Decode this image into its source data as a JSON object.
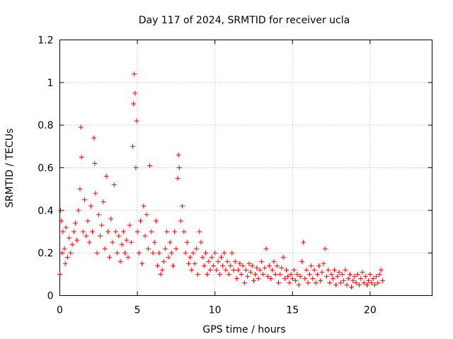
{
  "chart_data": {
    "type": "scatter",
    "title": "Day 117 of 2024, SRMTID for receiver ucla",
    "xlabel": "GPS time / hours",
    "ylabel": "SRMTID / TECUs",
    "xlim": [
      0,
      24
    ],
    "ylim": [
      0,
      1.2
    ],
    "xticks": [
      0,
      5,
      10,
      15,
      20
    ],
    "yticks": [
      0,
      0.2,
      0.4,
      0.6,
      0.8,
      1,
      1.2
    ],
    "xtick_labels": [
      "0",
      "5",
      "10",
      "15",
      "20"
    ],
    "ytick_labels": [
      "0",
      "0.2",
      "0.4",
      "0.6",
      "0.8",
      "1",
      "1.2"
    ],
    "grid": true,
    "marker": "+",
    "marker_color": "#ff0000",
    "series": [
      {
        "name": "SRMTID",
        "points": [
          [
            0.0,
            0.1
          ],
          [
            0.05,
            0.4
          ],
          [
            0.1,
            0.35
          ],
          [
            0.15,
            0.2
          ],
          [
            0.2,
            0.3
          ],
          [
            0.3,
            0.22
          ],
          [
            0.35,
            0.15
          ],
          [
            0.4,
            0.32
          ],
          [
            0.5,
            0.18
          ],
          [
            0.6,
            0.27
          ],
          [
            0.7,
            0.2
          ],
          [
            0.8,
            0.24
          ],
          [
            0.9,
            0.3
          ],
          [
            1.0,
            0.34
          ],
          [
            1.1,
            0.26
          ],
          [
            1.2,
            0.4
          ],
          [
            1.3,
            0.5
          ],
          [
            1.35,
            0.79
          ],
          [
            1.4,
            0.65
          ],
          [
            1.5,
            0.3
          ],
          [
            1.6,
            0.45
          ],
          [
            1.7,
            0.28
          ],
          [
            1.8,
            0.35
          ],
          [
            1.9,
            0.25
          ],
          [
            2.0,
            0.42
          ],
          [
            2.1,
            0.3
          ],
          [
            2.2,
            0.74
          ],
          [
            2.25,
            0.62
          ],
          [
            2.3,
            0.48
          ],
          [
            2.4,
            0.2
          ],
          [
            2.5,
            0.38
          ],
          [
            2.6,
            0.28
          ],
          [
            2.7,
            0.33
          ],
          [
            2.8,
            0.44
          ],
          [
            2.9,
            0.22
          ],
          [
            3.0,
            0.56
          ],
          [
            3.1,
            0.3
          ],
          [
            3.2,
            0.18
          ],
          [
            3.3,
            0.36
          ],
          [
            3.4,
            0.25
          ],
          [
            3.5,
            0.52
          ],
          [
            3.6,
            0.3
          ],
          [
            3.7,
            0.2
          ],
          [
            3.8,
            0.28
          ],
          [
            3.9,
            0.16
          ],
          [
            4.0,
            0.24
          ],
          [
            4.1,
            0.3
          ],
          [
            4.2,
            0.2
          ],
          [
            4.3,
            0.26
          ],
          [
            4.4,
            0.18
          ],
          [
            4.5,
            0.33
          ],
          [
            4.6,
            0.25
          ],
          [
            4.7,
            0.7
          ],
          [
            4.75,
            0.9
          ],
          [
            4.8,
            1.04
          ],
          [
            4.85,
            0.95
          ],
          [
            4.9,
            0.6
          ],
          [
            4.95,
            0.82
          ],
          [
            5.0,
            0.3
          ],
          [
            5.1,
            0.2
          ],
          [
            5.2,
            0.35
          ],
          [
            5.3,
            0.15
          ],
          [
            5.4,
            0.42
          ],
          [
            5.5,
            0.28
          ],
          [
            5.6,
            0.38
          ],
          [
            5.7,
            0.22
          ],
          [
            5.8,
            0.61
          ],
          [
            5.9,
            0.3
          ],
          [
            6.0,
            0.2
          ],
          [
            6.1,
            0.25
          ],
          [
            6.2,
            0.35
          ],
          [
            6.3,
            0.14
          ],
          [
            6.4,
            0.2
          ],
          [
            6.5,
            0.1
          ],
          [
            6.6,
            0.12
          ],
          [
            6.7,
            0.16
          ],
          [
            6.8,
            0.22
          ],
          [
            6.9,
            0.3
          ],
          [
            7.0,
            0.18
          ],
          [
            7.1,
            0.25
          ],
          [
            7.2,
            0.2
          ],
          [
            7.3,
            0.14
          ],
          [
            7.4,
            0.3
          ],
          [
            7.5,
            0.22
          ],
          [
            7.6,
            0.55
          ],
          [
            7.65,
            0.66
          ],
          [
            7.7,
            0.6
          ],
          [
            7.8,
            0.35
          ],
          [
            7.9,
            0.42
          ],
          [
            8.0,
            0.3
          ],
          [
            8.1,
            0.2
          ],
          [
            8.2,
            0.25
          ],
          [
            8.3,
            0.15
          ],
          [
            8.4,
            0.18
          ],
          [
            8.5,
            0.12
          ],
          [
            8.6,
            0.2
          ],
          [
            8.7,
            0.15
          ],
          [
            8.8,
            0.22
          ],
          [
            8.9,
            0.1
          ],
          [
            9.0,
            0.3
          ],
          [
            9.1,
            0.25
          ],
          [
            9.2,
            0.18
          ],
          [
            9.3,
            0.14
          ],
          [
            9.4,
            0.2
          ],
          [
            9.5,
            0.1
          ],
          [
            9.6,
            0.16
          ],
          [
            9.7,
            0.12
          ],
          [
            9.8,
            0.18
          ],
          [
            9.9,
            0.14
          ],
          [
            10.0,
            0.2
          ],
          [
            10.1,
            0.12
          ],
          [
            10.2,
            0.16
          ],
          [
            10.3,
            0.1
          ],
          [
            10.4,
            0.18
          ],
          [
            10.5,
            0.14
          ],
          [
            10.6,
            0.2
          ],
          [
            10.7,
            0.12
          ],
          [
            10.8,
            0.16
          ],
          [
            10.9,
            0.1
          ],
          [
            11.0,
            0.14
          ],
          [
            11.1,
            0.2
          ],
          [
            11.2,
            0.12
          ],
          [
            11.3,
            0.16
          ],
          [
            11.4,
            0.08
          ],
          [
            11.5,
            0.12
          ],
          [
            11.6,
            0.15
          ],
          [
            11.7,
            0.1
          ],
          [
            11.8,
            0.14
          ],
          [
            11.9,
            0.06
          ],
          [
            12.0,
            0.12
          ],
          [
            12.1,
            0.09
          ],
          [
            12.2,
            0.15
          ],
          [
            12.3,
            0.11
          ],
          [
            12.4,
            0.14
          ],
          [
            12.5,
            0.07
          ],
          [
            12.6,
            0.1
          ],
          [
            12.7,
            0.13
          ],
          [
            12.8,
            0.08
          ],
          [
            12.9,
            0.12
          ],
          [
            13.0,
            0.16
          ],
          [
            13.1,
            0.1
          ],
          [
            13.2,
            0.13
          ],
          [
            13.3,
            0.22
          ],
          [
            13.4,
            0.09
          ],
          [
            13.5,
            0.14
          ],
          [
            13.6,
            0.08
          ],
          [
            13.7,
            0.12
          ],
          [
            13.8,
            0.16
          ],
          [
            13.9,
            0.1
          ],
          [
            14.0,
            0.14
          ],
          [
            14.1,
            0.06
          ],
          [
            14.2,
            0.1
          ],
          [
            14.3,
            0.13
          ],
          [
            14.4,
            0.18
          ],
          [
            14.5,
            0.08
          ],
          [
            14.6,
            0.12
          ],
          [
            14.7,
            0.09
          ],
          [
            14.8,
            0.06
          ],
          [
            14.9,
            0.1
          ],
          [
            15.0,
            0.08
          ],
          [
            15.1,
            0.12
          ],
          [
            15.2,
            0.07
          ],
          [
            15.3,
            0.1
          ],
          [
            15.4,
            0.05
          ],
          [
            15.5,
            0.09
          ],
          [
            15.6,
            0.16
          ],
          [
            15.7,
            0.25
          ],
          [
            15.8,
            0.08
          ],
          [
            15.9,
            0.12
          ],
          [
            16.0,
            0.06
          ],
          [
            16.1,
            0.1
          ],
          [
            16.2,
            0.14
          ],
          [
            16.3,
            0.08
          ],
          [
            16.4,
            0.12
          ],
          [
            16.5,
            0.06
          ],
          [
            16.6,
            0.1
          ],
          [
            16.7,
            0.14
          ],
          [
            16.8,
            0.07
          ],
          [
            16.9,
            0.11
          ],
          [
            17.0,
            0.15
          ],
          [
            17.1,
            0.22
          ],
          [
            17.2,
            0.09
          ],
          [
            17.3,
            0.12
          ],
          [
            17.4,
            0.06
          ],
          [
            17.5,
            0.1
          ],
          [
            17.6,
            0.08
          ],
          [
            17.7,
            0.12
          ],
          [
            17.8,
            0.05
          ],
          [
            17.9,
            0.09
          ],
          [
            18.0,
            0.11
          ],
          [
            18.1,
            0.06
          ],
          [
            18.2,
            0.1
          ],
          [
            18.3,
            0.07
          ],
          [
            18.4,
            0.12
          ],
          [
            18.5,
            0.05
          ],
          [
            18.6,
            0.08
          ],
          [
            18.7,
            0.1
          ],
          [
            18.8,
            0.04
          ],
          [
            18.9,
            0.07
          ],
          [
            19.0,
            0.09
          ],
          [
            19.1,
            0.06
          ],
          [
            19.2,
            0.1
          ],
          [
            19.3,
            0.05
          ],
          [
            19.4,
            0.08
          ],
          [
            19.5,
            0.11
          ],
          [
            19.6,
            0.06
          ],
          [
            19.7,
            0.09
          ],
          [
            19.8,
            0.05
          ],
          [
            19.9,
            0.07
          ],
          [
            20.0,
            0.1
          ],
          [
            20.1,
            0.06
          ],
          [
            20.2,
            0.08
          ],
          [
            20.3,
            0.05
          ],
          [
            20.4,
            0.09
          ],
          [
            20.5,
            0.06
          ],
          [
            20.6,
            0.1
          ],
          [
            20.7,
            0.12
          ],
          [
            20.8,
            0.07
          ]
        ]
      }
    ]
  }
}
